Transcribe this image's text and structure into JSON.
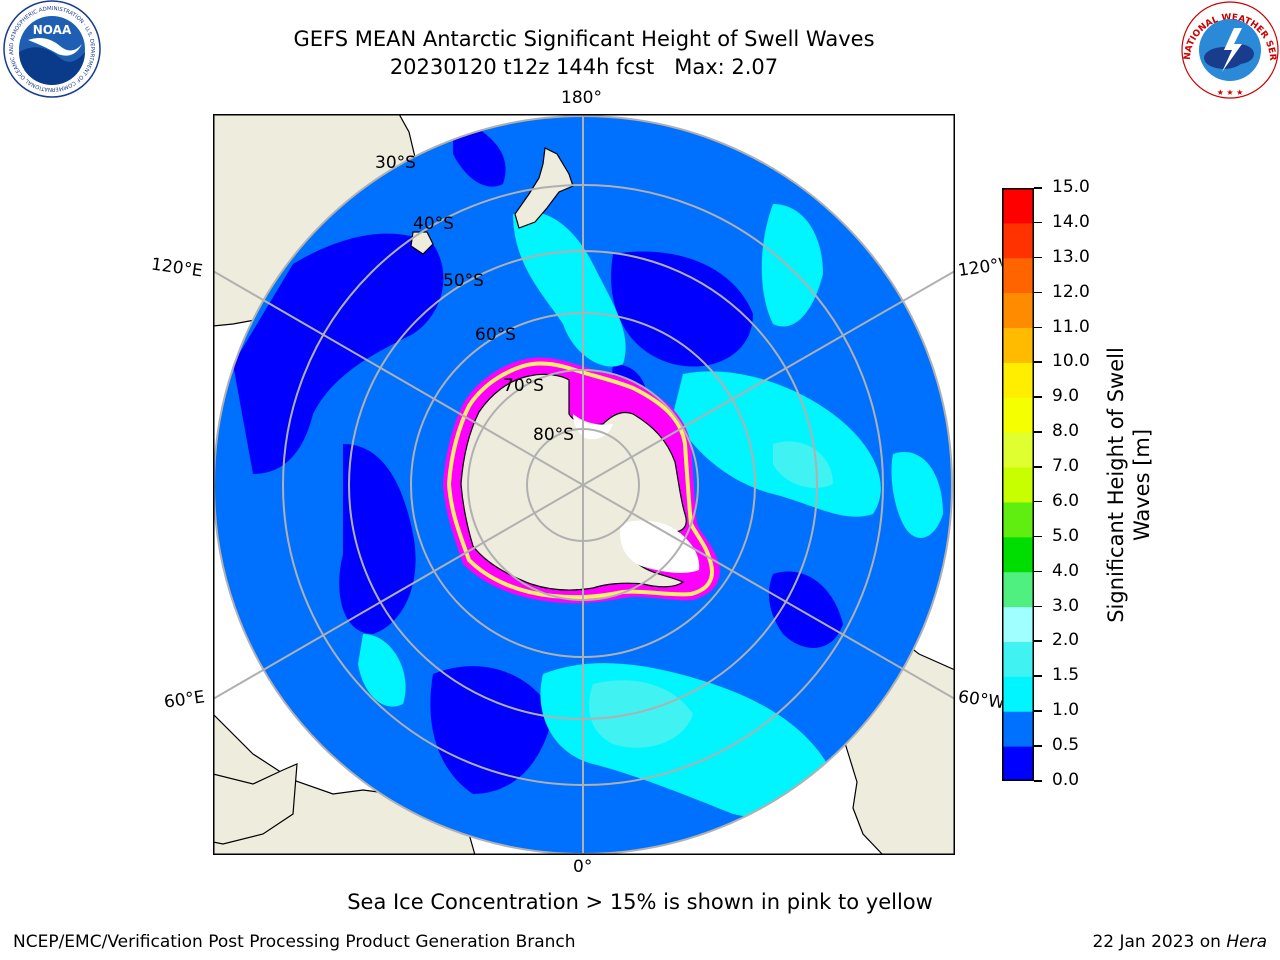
{
  "title": {
    "line1": "GEFS MEAN Antarctic Significant Height of Swell Waves",
    "line2": "20230120 t12z 144h fcst   Max: 2.07"
  },
  "logos": {
    "noaa": {
      "text": "NOAA",
      "ring_text": "NATIONAL OCEANIC AND ATMOSPHERIC ADMINISTRATION · U.S. DEPARTMENT OF COMMERCE"
    },
    "nws": {
      "ring_text": "NATIONAL WEATHER SERVICE"
    }
  },
  "map": {
    "projection": "south polar stereographic",
    "longitude_labels": {
      "top": "180°",
      "bottom": "0°",
      "upper_left": "120°E",
      "upper_right": "120°W",
      "lower_left": "60°E",
      "lower_right": "60°W"
    },
    "latitude_labels": [
      "30°S",
      "40°S",
      "50°S",
      "60°S",
      "70°S",
      "80°S"
    ],
    "colors": {
      "land": "#eeecdc",
      "sea_ice_min": "#ff00ff",
      "sea_ice_max": "#ffff66",
      "graticule": "#b0b0b0"
    }
  },
  "colorbar": {
    "label_line1": "Significant Height of Swell",
    "label_line2": "Waves [m]",
    "ticks": [
      "0.0",
      "0.5",
      "1.0",
      "1.5",
      "2.0",
      "3.0",
      "4.0",
      "5.0",
      "6.0",
      "7.0",
      "8.0",
      "9.0",
      "10.0",
      "11.0",
      "12.0",
      "13.0",
      "14.0",
      "15.0"
    ],
    "bins": [
      {
        "from": 0.0,
        "to": 0.5,
        "color": "#0000ff"
      },
      {
        "from": 0.5,
        "to": 1.0,
        "color": "#0070ff"
      },
      {
        "from": 1.0,
        "to": 1.5,
        "color": "#00f5ff"
      },
      {
        "from": 1.5,
        "to": 2.0,
        "color": "#40f2f2"
      },
      {
        "from": 2.0,
        "to": 3.0,
        "color": "#a0ffff"
      },
      {
        "from": 3.0,
        "to": 4.0,
        "color": "#50f080"
      },
      {
        "from": 4.0,
        "to": 5.0,
        "color": "#00dd00"
      },
      {
        "from": 5.0,
        "to": 6.0,
        "color": "#60ee10"
      },
      {
        "from": 6.0,
        "to": 7.0,
        "color": "#c8ff00"
      },
      {
        "from": 7.0,
        "to": 8.0,
        "color": "#e0ff30"
      },
      {
        "from": 8.0,
        "to": 9.0,
        "color": "#f5ff00"
      },
      {
        "from": 9.0,
        "to": 10.0,
        "color": "#ffee00"
      },
      {
        "from": 10.0,
        "to": 11.0,
        "color": "#ffbb00"
      },
      {
        "from": 11.0,
        "to": 12.0,
        "color": "#ff8c00"
      },
      {
        "from": 12.0,
        "to": 13.0,
        "color": "#ff6400"
      },
      {
        "from": 13.0,
        "to": 14.0,
        "color": "#ff3200"
      },
      {
        "from": 14.0,
        "to": 15.0,
        "color": "#ff0000"
      }
    ]
  },
  "footer": {
    "note": "Sea Ice Concentration > 15% is shown in pink to yellow",
    "left": "NCEP/EMC/Verification Post Processing Product Generation Branch",
    "right_date": "22 Jan 2023 on",
    "right_host": "Hera"
  }
}
